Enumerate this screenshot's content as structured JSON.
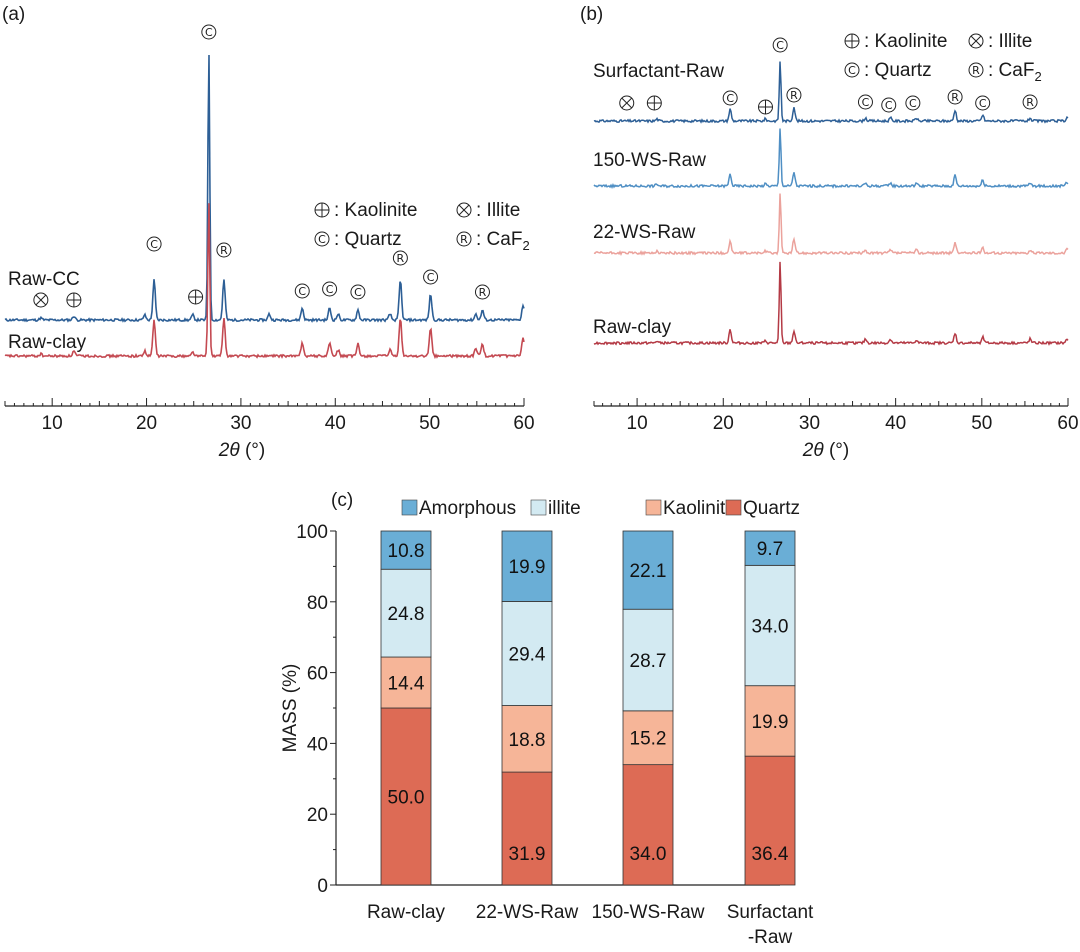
{
  "chart_data": [
    {
      "panel": "(a)",
      "type": "line",
      "title": "",
      "xlabel_symbol": "2θ",
      "xlabel_unit": " (°)",
      "xlim": [
        5,
        60
      ],
      "xticks": [
        "10",
        "20",
        "30",
        "40",
        "50",
        "60"
      ],
      "series": [
        {
          "name": "Raw-CC",
          "color": "#2d5f96",
          "peaks": [
            [
              8.8,
              2
            ],
            [
              12.3,
              4
            ],
            [
              19.8,
              5
            ],
            [
              20.8,
              40
            ],
            [
              24.9,
              5
            ],
            [
              26.6,
              270
            ],
            [
              28.2,
              40
            ],
            [
              33.0,
              6
            ],
            [
              36.5,
              12
            ],
            [
              39.4,
              12
            ],
            [
              40.3,
              6
            ],
            [
              42.4,
              10
            ],
            [
              45.8,
              6
            ],
            [
              46.9,
              40
            ],
            [
              50.1,
              26
            ],
            [
              54.9,
              6
            ],
            [
              55.6,
              10
            ],
            [
              59.9,
              15
            ]
          ]
        },
        {
          "name": "Raw-clay",
          "color": "#c44a52",
          "peaks": [
            [
              8.8,
              2
            ],
            [
              12.3,
              5
            ],
            [
              19.8,
              5
            ],
            [
              20.8,
              36
            ],
            [
              24.9,
              4
            ],
            [
              26.6,
              155
            ],
            [
              28.2,
              38
            ],
            [
              36.5,
              14
            ],
            [
              39.4,
              14
            ],
            [
              40.3,
              6
            ],
            [
              42.4,
              12
            ],
            [
              45.8,
              6
            ],
            [
              46.9,
              38
            ],
            [
              50.1,
              28
            ],
            [
              54.9,
              8
            ],
            [
              55.6,
              12
            ],
            [
              59.9,
              18
            ]
          ]
        }
      ],
      "phase_markers": [
        {
          "symbol": "⊗",
          "x": 8.8,
          "over": "Raw-CC"
        },
        {
          "symbol": "⊕",
          "x": 12.3,
          "over": "Raw-CC"
        },
        {
          "symbol": "©",
          "x": 20.8,
          "over": "Raw-CC"
        },
        {
          "symbol": "⊕",
          "x": 25.2,
          "over": "Raw-CC"
        },
        {
          "symbol": "©",
          "x": 26.6,
          "over": "Raw-CC"
        },
        {
          "symbol": "®",
          "x": 28.2,
          "over": "Raw-CC"
        },
        {
          "symbol": "©",
          "x": 36.5,
          "over": "Raw-CC"
        },
        {
          "symbol": "©",
          "x": 39.4,
          "over": "Raw-CC"
        },
        {
          "symbol": "©",
          "x": 42.4,
          "over": "Raw-CC"
        },
        {
          "symbol": "®",
          "x": 46.9,
          "over": "Raw-CC"
        },
        {
          "symbol": "©",
          "x": 50.1,
          "over": "Raw-CC"
        },
        {
          "symbol": "®",
          "x": 55.6,
          "over": "Raw-CC"
        }
      ],
      "legend": [
        {
          "symbol": "⊕",
          "text": " : Kaolinite"
        },
        {
          "symbol": "⊗",
          "text": ": Illite"
        },
        {
          "symbol": "©",
          "text": " : Quartz"
        },
        {
          "symbol": "®",
          "text": ": CaF",
          "sub": "2"
        }
      ]
    },
    {
      "panel": "(b)",
      "type": "line",
      "title": "",
      "xlabel_symbol": "2θ",
      "xlabel_unit": " (°)",
      "xlim": [
        5,
        60
      ],
      "xticks": [
        "10",
        "20",
        "30",
        "40",
        "50",
        "60"
      ],
      "series": [
        {
          "name": "Surfactant-Raw",
          "color": "#2d5f96",
          "peaks": [
            [
              12.3,
              2
            ],
            [
              20.8,
              12
            ],
            [
              24.9,
              2
            ],
            [
              26.6,
              60
            ],
            [
              28.2,
              14
            ],
            [
              36.5,
              3
            ],
            [
              39.4,
              3
            ],
            [
              42.4,
              3
            ],
            [
              46.9,
              11
            ],
            [
              50.1,
              6
            ],
            [
              55.6,
              3
            ],
            [
              59.9,
              4
            ]
          ]
        },
        {
          "name": "150-WS-Raw",
          "color": "#4f8fc4",
          "peaks": [
            [
              12.3,
              2
            ],
            [
              20.8,
              12
            ],
            [
              24.9,
              2
            ],
            [
              26.6,
              58
            ],
            [
              28.2,
              14
            ],
            [
              36.5,
              3
            ],
            [
              39.4,
              3
            ],
            [
              42.4,
              3
            ],
            [
              46.9,
              11
            ],
            [
              50.1,
              6
            ],
            [
              55.6,
              3
            ],
            [
              59.9,
              4
            ]
          ]
        },
        {
          "name": "22-WS-Raw",
          "color": "#eba29c",
          "peaks": [
            [
              12.3,
              2
            ],
            [
              20.8,
              12
            ],
            [
              24.9,
              2
            ],
            [
              26.6,
              60
            ],
            [
              28.2,
              14
            ],
            [
              36.5,
              3
            ],
            [
              39.4,
              3
            ],
            [
              42.4,
              3
            ],
            [
              46.9,
              11
            ],
            [
              50.1,
              6
            ],
            [
              55.6,
              3
            ],
            [
              59.9,
              4
            ]
          ]
        },
        {
          "name": "Raw-clay",
          "color": "#b43a45",
          "peaks": [
            [
              12.3,
              2
            ],
            [
              20.8,
              14
            ],
            [
              24.9,
              2
            ],
            [
              26.6,
              82
            ],
            [
              28.2,
              12
            ],
            [
              36.5,
              4
            ],
            [
              39.4,
              4
            ],
            [
              42.4,
              3
            ],
            [
              46.9,
              10
            ],
            [
              50.1,
              7
            ],
            [
              55.6,
              4
            ],
            [
              59.9,
              4
            ]
          ]
        }
      ],
      "phase_markers": [
        {
          "symbol": "⊗",
          "x": 8.8
        },
        {
          "symbol": "⊕",
          "x": 12.0
        },
        {
          "symbol": "©",
          "x": 20.8
        },
        {
          "symbol": "⊕",
          "x": 24.9
        },
        {
          "symbol": "©",
          "x": 26.6
        },
        {
          "symbol": "®",
          "x": 28.2
        },
        {
          "symbol": "©",
          "x": 36.5
        },
        {
          "symbol": "©",
          "x": 39.2
        },
        {
          "symbol": "©",
          "x": 42.0
        },
        {
          "symbol": "®",
          "x": 46.9
        },
        {
          "symbol": "©",
          "x": 50.1
        },
        {
          "symbol": "®",
          "x": 55.6
        }
      ],
      "legend": [
        {
          "symbol": "⊕",
          "text": " : Kaolinite"
        },
        {
          "symbol": "⊗",
          "text": ": Illite"
        },
        {
          "symbol": "©",
          "text": " : Quartz"
        },
        {
          "symbol": "®",
          "text": ": CaF",
          "sub": "2"
        }
      ]
    },
    {
      "panel": "(c)",
      "type": "bar",
      "stacked": true,
      "title": "",
      "xlabel": "",
      "ylabel": "MASS (%)",
      "ylim": [
        0,
        100
      ],
      "yticks": [
        "0",
        "20",
        "40",
        "60",
        "80",
        "100"
      ],
      "categories": [
        [
          "Raw-clay"
        ],
        [
          "22-WS-Raw"
        ],
        [
          "150-WS-Raw"
        ],
        [
          "Surfactant",
          "-Raw"
        ]
      ],
      "series": [
        {
          "name": "Quartz",
          "color": "#dd6b55",
          "values": [
            50.0,
            31.9,
            34.0,
            36.4
          ],
          "labels": [
            "50.0",
            "31.9",
            "34.0",
            "36.4"
          ]
        },
        {
          "name": "Kaolinite",
          "color": "#f6b598",
          "values": [
            14.4,
            18.8,
            15.2,
            19.9
          ],
          "labels": [
            "14.4",
            "18.8",
            "15.2",
            "19.9"
          ]
        },
        {
          "name": "illite",
          "color": "#d3eaf2",
          "values": [
            24.8,
            29.4,
            28.7,
            34.0
          ],
          "labels": [
            "24.8",
            "29.4",
            "28.7",
            "34.0"
          ]
        },
        {
          "name": "Amorphous",
          "color": "#6aaed6",
          "values": [
            10.8,
            19.9,
            22.1,
            9.7
          ],
          "labels": [
            "10.8",
            "19.9",
            "22.1",
            "9.7"
          ]
        }
      ],
      "legend_order": [
        "Amorphous",
        "illite",
        "Kaolinite",
        "Quartz"
      ]
    }
  ]
}
